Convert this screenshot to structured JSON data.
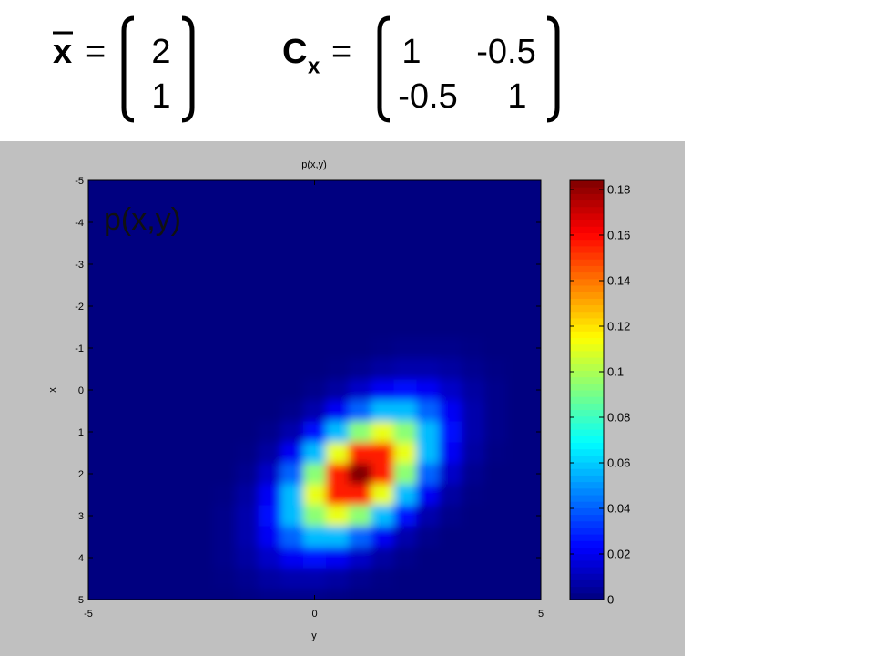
{
  "formula": {
    "mean": {
      "symbol": "x",
      "equals": "=",
      "values": [
        2,
        1
      ]
    },
    "covariance": {
      "symbol": "C",
      "subscript": "x",
      "equals": "=",
      "values": [
        [
          1,
          -0.5
        ],
        [
          -0.5,
          1
        ]
      ]
    }
  },
  "chart_data": {
    "type": "heatmap",
    "title": "p(x,y)",
    "annotation": "p(x,y)",
    "xlabel": "y",
    "ylabel": "x",
    "x": [
      -5,
      -4.5,
      -4,
      -3.5,
      -3,
      -2.5,
      -2,
      -1.5,
      -1,
      -0.5,
      0,
      0.5,
      1,
      1.5,
      2,
      2.5,
      3,
      3.5,
      4,
      4.5,
      5
    ],
    "y": [
      -5,
      -4.5,
      -4,
      -3.5,
      -3,
      -2.5,
      -2,
      -1.5,
      -1,
      -0.5,
      0,
      0.5,
      1,
      1.5,
      2,
      2.5,
      3,
      3.5,
      4,
      4.5,
      5
    ],
    "z": [
      [
        0,
        0,
        0,
        0,
        0,
        0,
        0,
        0,
        0,
        0,
        0,
        0,
        0,
        0,
        0,
        0,
        0,
        0,
        0,
        0,
        0
      ],
      [
        0,
        0,
        0,
        0,
        0,
        0,
        0,
        0,
        0,
        0,
        0,
        0,
        0,
        0,
        0,
        0,
        0,
        0,
        0,
        0,
        0
      ],
      [
        0,
        0,
        0,
        0,
        0,
        0,
        0,
        0,
        0,
        0,
        0,
        0,
        0,
        0,
        0,
        0,
        0,
        0,
        0,
        0,
        0
      ],
      [
        0,
        0,
        0,
        0,
        0,
        0,
        0,
        0,
        0,
        0,
        0,
        0,
        0,
        0,
        0,
        0,
        0,
        0,
        0,
        0,
        0
      ],
      [
        0,
        0,
        0,
        0,
        0,
        0,
        0,
        0,
        0,
        0,
        0,
        0,
        0,
        0,
        0,
        0,
        0,
        0,
        0,
        0,
        0
      ],
      [
        0,
        0,
        0,
        0,
        0,
        0,
        0,
        0,
        0,
        0,
        0,
        0,
        0,
        0,
        0,
        0,
        0,
        0,
        0,
        0,
        0
      ],
      [
        0,
        0,
        0,
        0,
        0,
        0,
        0,
        0,
        0,
        0,
        0,
        0,
        0,
        0,
        0,
        0,
        0,
        0,
        0,
        0,
        0
      ],
      [
        0,
        0,
        0,
        0,
        0,
        0,
        0,
        0,
        0,
        0,
        0,
        0,
        0,
        0,
        0,
        0,
        0,
        0,
        0,
        0,
        0
      ],
      [
        0,
        0,
        0,
        0,
        0,
        0,
        0,
        0,
        0,
        0,
        0,
        0,
        0,
        0.001,
        0.002,
        0.002,
        0.002,
        0.001,
        0,
        0,
        0
      ],
      [
        0,
        0,
        0,
        0,
        0,
        0,
        0,
        0,
        0,
        0,
        0,
        0.001,
        0.003,
        0.006,
        0.008,
        0.008,
        0.006,
        0.003,
        0.001,
        0,
        0
      ],
      [
        0,
        0,
        0,
        0,
        0,
        0,
        0,
        0,
        0,
        0,
        0.002,
        0.006,
        0.013,
        0.021,
        0.025,
        0.021,
        0.013,
        0.006,
        0.002,
        0,
        0
      ],
      [
        0,
        0,
        0,
        0,
        0,
        0,
        0,
        0,
        0,
        0.002,
        0.008,
        0.021,
        0.041,
        0.057,
        0.057,
        0.041,
        0.021,
        0.008,
        0.002,
        0,
        0
      ],
      [
        0,
        0,
        0,
        0,
        0,
        0,
        0,
        0,
        0.002,
        0.008,
        0.025,
        0.057,
        0.094,
        0.111,
        0.094,
        0.057,
        0.025,
        0.008,
        0.002,
        0,
        0
      ],
      [
        0,
        0,
        0,
        0,
        0,
        0,
        0,
        0.001,
        0.006,
        0.021,
        0.057,
        0.111,
        0.156,
        0.156,
        0.111,
        0.057,
        0.021,
        0.006,
        0.001,
        0,
        0
      ],
      [
        0,
        0,
        0,
        0,
        0,
        0,
        0,
        0.003,
        0.013,
        0.041,
        0.094,
        0.156,
        0.184,
        0.156,
        0.094,
        0.041,
        0.013,
        0.003,
        0,
        0,
        0
      ],
      [
        0,
        0,
        0,
        0,
        0,
        0,
        0.001,
        0.006,
        0.021,
        0.057,
        0.111,
        0.156,
        0.156,
        0.111,
        0.057,
        0.021,
        0.006,
        0.001,
        0,
        0,
        0
      ],
      [
        0,
        0,
        0,
        0,
        0,
        0,
        0.002,
        0.008,
        0.025,
        0.057,
        0.094,
        0.111,
        0.094,
        0.057,
        0.025,
        0.008,
        0.002,
        0,
        0,
        0,
        0
      ],
      [
        0,
        0,
        0,
        0,
        0,
        0,
        0.002,
        0.008,
        0.021,
        0.041,
        0.057,
        0.057,
        0.041,
        0.021,
        0.008,
        0.002,
        0,
        0,
        0,
        0,
        0
      ],
      [
        0,
        0,
        0,
        0,
        0,
        0,
        0.002,
        0.006,
        0.013,
        0.021,
        0.025,
        0.021,
        0.013,
        0.006,
        0.002,
        0,
        0,
        0,
        0,
        0,
        0
      ],
      [
        0,
        0,
        0,
        0,
        0,
        0,
        0.001,
        0.003,
        0.006,
        0.008,
        0.008,
        0.006,
        0.003,
        0.001,
        0,
        0,
        0,
        0,
        0,
        0,
        0
      ],
      [
        0,
        0,
        0,
        0,
        0,
        0,
        0,
        0.001,
        0.002,
        0.002,
        0.002,
        0.001,
        0,
        0,
        0,
        0,
        0,
        0,
        0,
        0,
        0
      ]
    ],
    "xlim": [
      -5,
      5
    ],
    "ylim": [
      5,
      -5
    ],
    "xticks": [
      -5,
      0,
      5
    ],
    "yticks": [
      -5,
      -4,
      -3,
      -2,
      -1,
      0,
      1,
      2,
      3,
      4,
      5
    ],
    "colormap": "jet",
    "zlim": [
      0,
      0.184
    ],
    "colorbar_ticks": [
      0,
      0.02,
      0.04,
      0.06,
      0.08,
      0.1,
      0.12,
      0.14,
      0.16,
      0.18
    ]
  }
}
